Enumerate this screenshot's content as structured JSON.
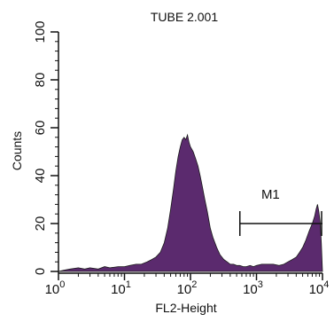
{
  "chart_data": {
    "type": "area",
    "title": "TUBE 2.001",
    "xlabel": "FL2-Height",
    "ylabel": "Counts",
    "x_scale": "log",
    "xlim": [
      1,
      10000
    ],
    "ylim": [
      0,
      100
    ],
    "x_ticks": [
      {
        "value": 1,
        "base": "10",
        "exp": "0"
      },
      {
        "value": 10,
        "base": "10",
        "exp": "1"
      },
      {
        "value": 100,
        "base": "10",
        "exp": "2"
      },
      {
        "value": 1000,
        "base": "10",
        "exp": "3"
      },
      {
        "value": 10000,
        "base": "10",
        "exp": "4"
      }
    ],
    "y_ticks": [
      {
        "value": 0,
        "label": "0"
      },
      {
        "value": 20,
        "label": "20"
      },
      {
        "value": 40,
        "label": "40"
      },
      {
        "value": 60,
        "label": "60"
      },
      {
        "value": 80,
        "label": "80"
      },
      {
        "value": 100,
        "label": "100"
      }
    ],
    "grid": false,
    "fill_color": "#5b2a6e",
    "histogram": {
      "x": [
        1,
        1.2,
        1.5,
        2,
        2.5,
        3,
        4,
        5,
        6,
        8,
        10,
        12,
        15,
        18,
        22,
        26,
        30,
        35,
        40,
        45,
        50,
        55,
        60,
        65,
        70,
        75,
        80,
        85,
        90,
        95,
        100,
        110,
        120,
        130,
        140,
        150,
        165,
        180,
        200,
        220,
        250,
        280,
        320,
        360,
        400,
        450,
        500,
        560,
        630,
        700,
        800,
        900,
        1000,
        1200,
        1500,
        1800,
        2200,
        2600,
        3000,
        3500,
        4000,
        4500,
        5000,
        5600,
        6300,
        7000,
        7600,
        8000,
        8400,
        8800,
        9200,
        9600,
        10000
      ],
      "y": [
        0,
        0.5,
        1,
        1.5,
        1,
        1.5,
        1,
        2,
        1.5,
        2,
        2,
        2.5,
        3,
        3,
        4,
        5,
        6,
        8,
        12,
        18,
        26,
        34,
        42,
        48,
        52,
        55,
        56,
        55,
        57,
        54,
        52,
        50,
        47,
        44,
        40,
        36,
        30,
        25,
        18,
        14,
        10,
        7,
        5,
        4,
        3,
        3,
        2.5,
        2.5,
        2,
        2,
        2.5,
        2,
        2.5,
        3,
        3,
        3,
        2.5,
        3,
        4,
        5,
        6,
        8,
        10,
        13,
        17,
        20,
        23,
        26,
        28,
        25,
        21,
        12,
        0
      ]
    },
    "marker": {
      "label": "M1",
      "x_start": 560,
      "x_end": 10000,
      "y": 20
    }
  }
}
